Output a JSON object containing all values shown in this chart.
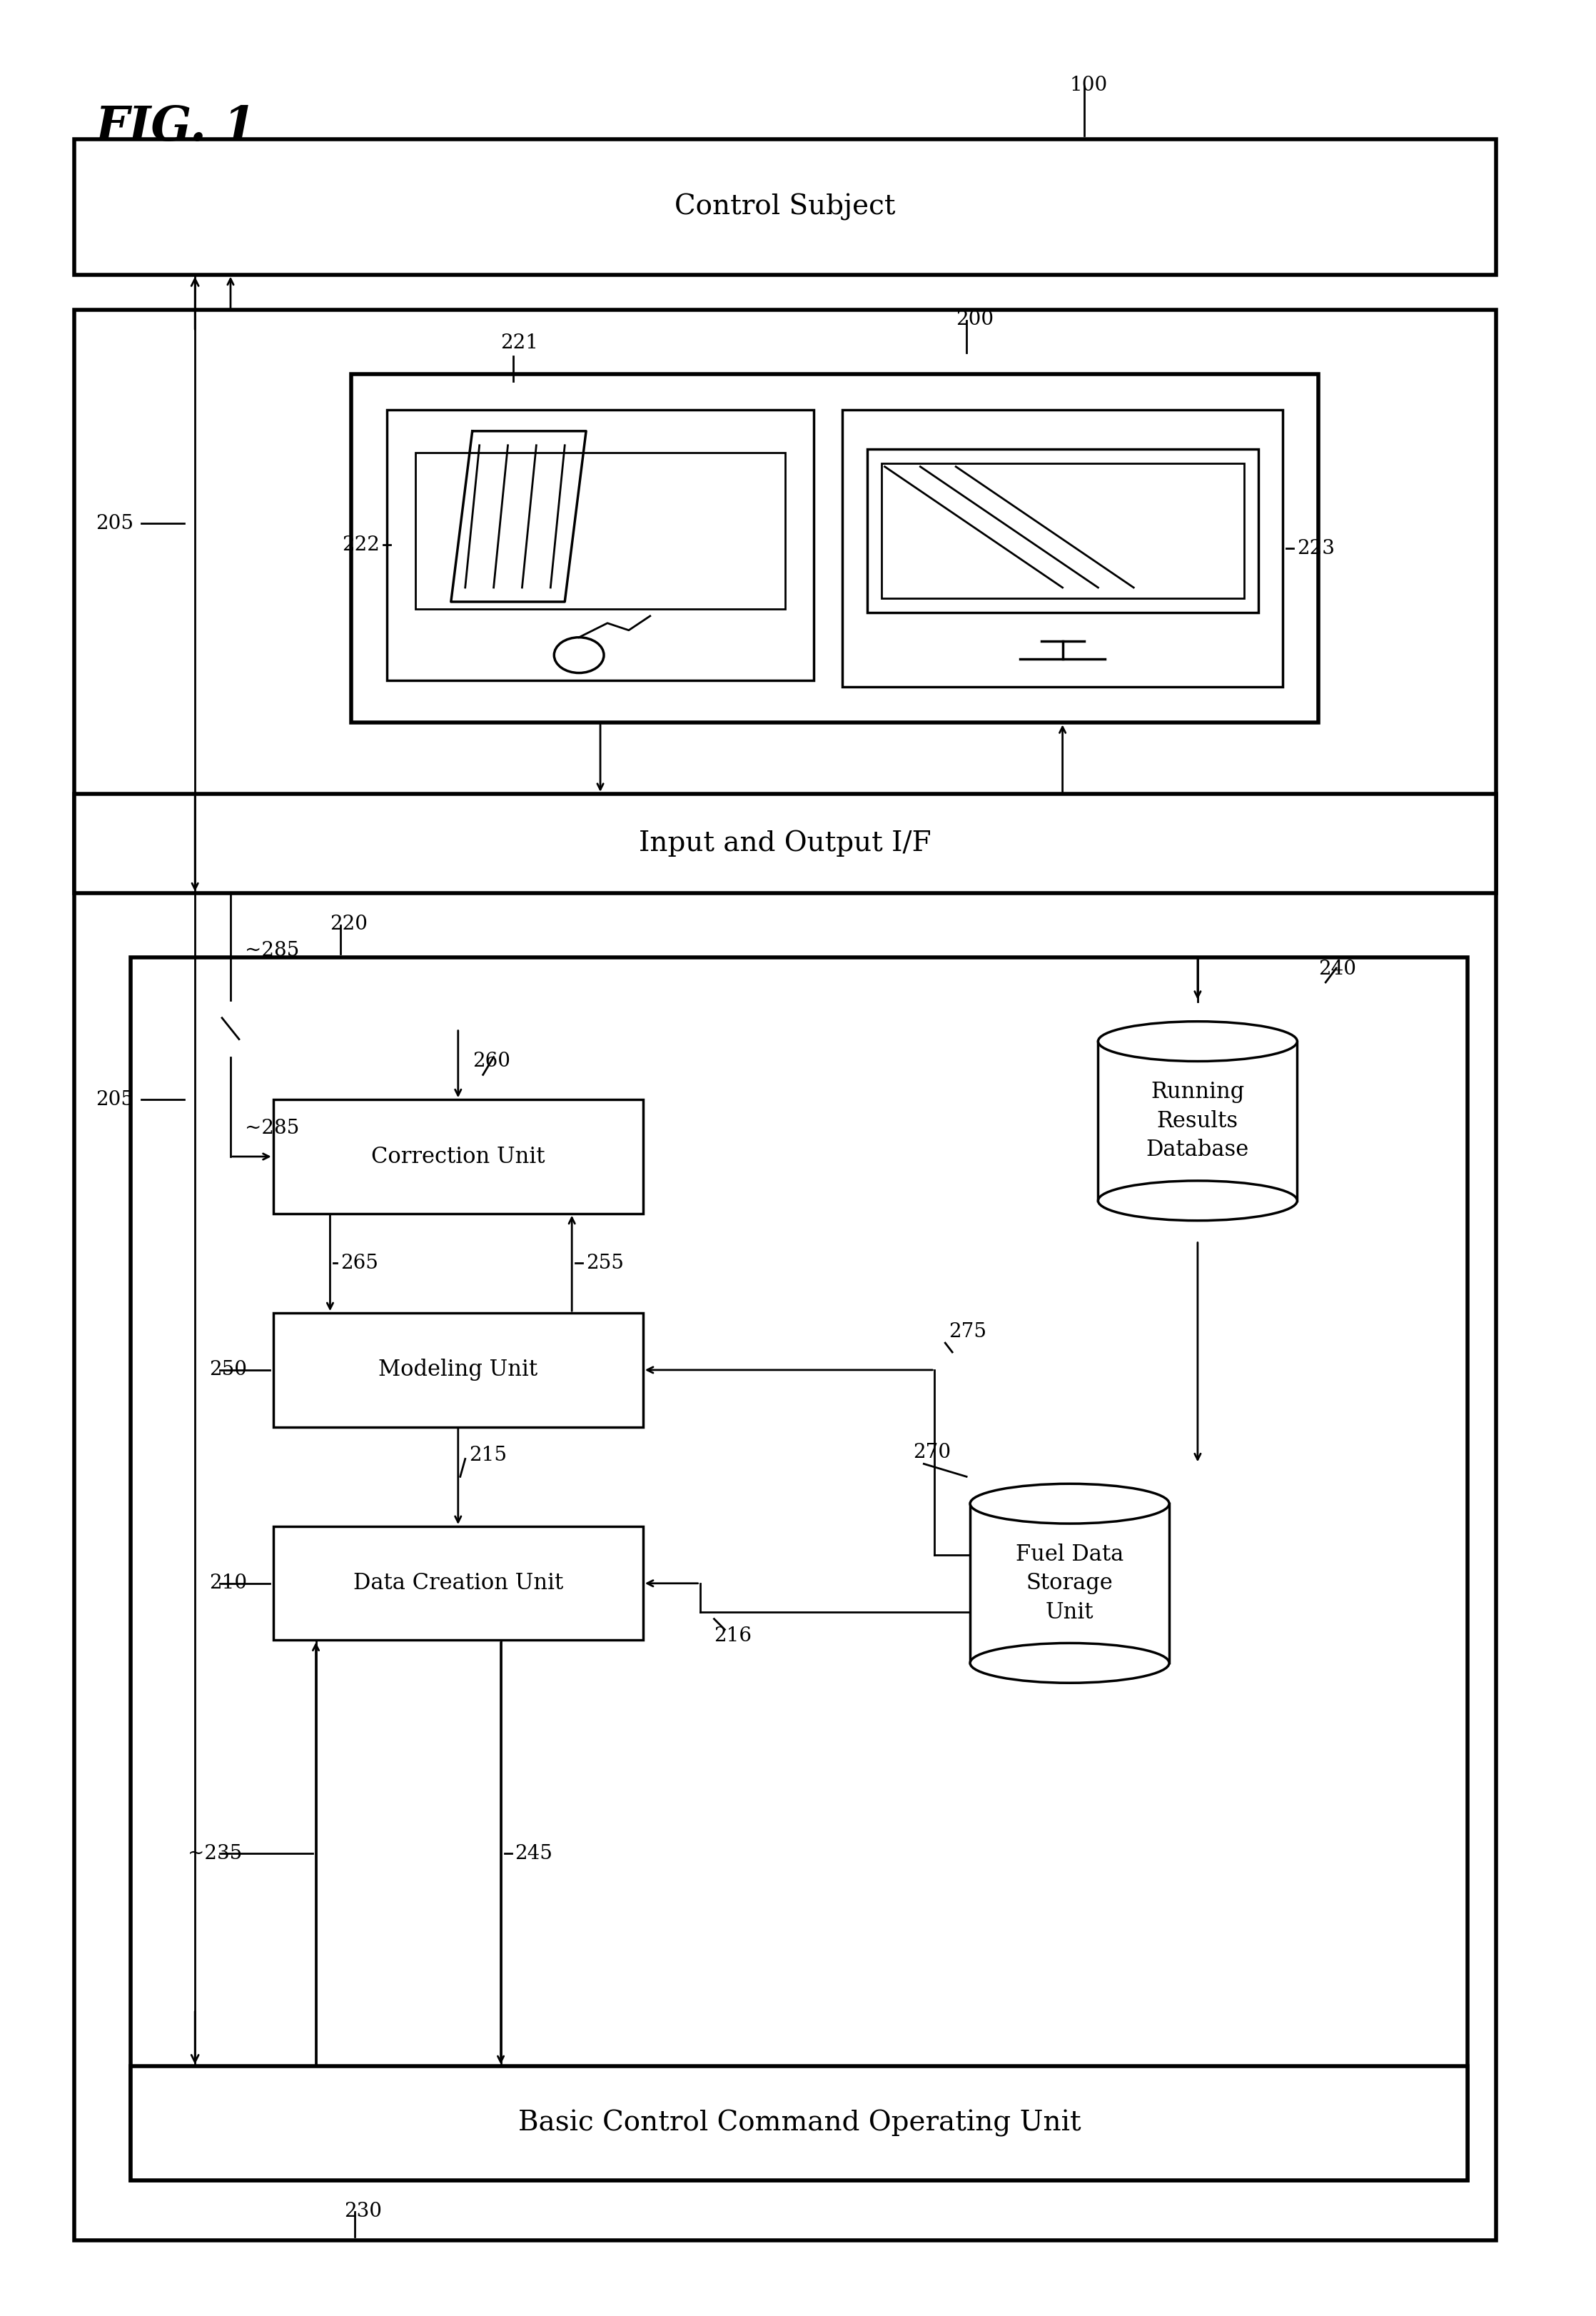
{
  "fig_title": "FIG. 1",
  "bg": "#ffffff",
  "labels": {
    "control_subject": "Control Subject",
    "input_output": "Input and Output I/F",
    "correction_unit": "Correction Unit",
    "modeling_unit": "Modeling Unit",
    "data_creation_unit": "Data Creation Unit",
    "basic_control": "Basic Control Command Operating Unit",
    "running_db": "Running\nResults\nDatabase",
    "fuel_storage": "Fuel Data\nStorage\nUnit"
  }
}
